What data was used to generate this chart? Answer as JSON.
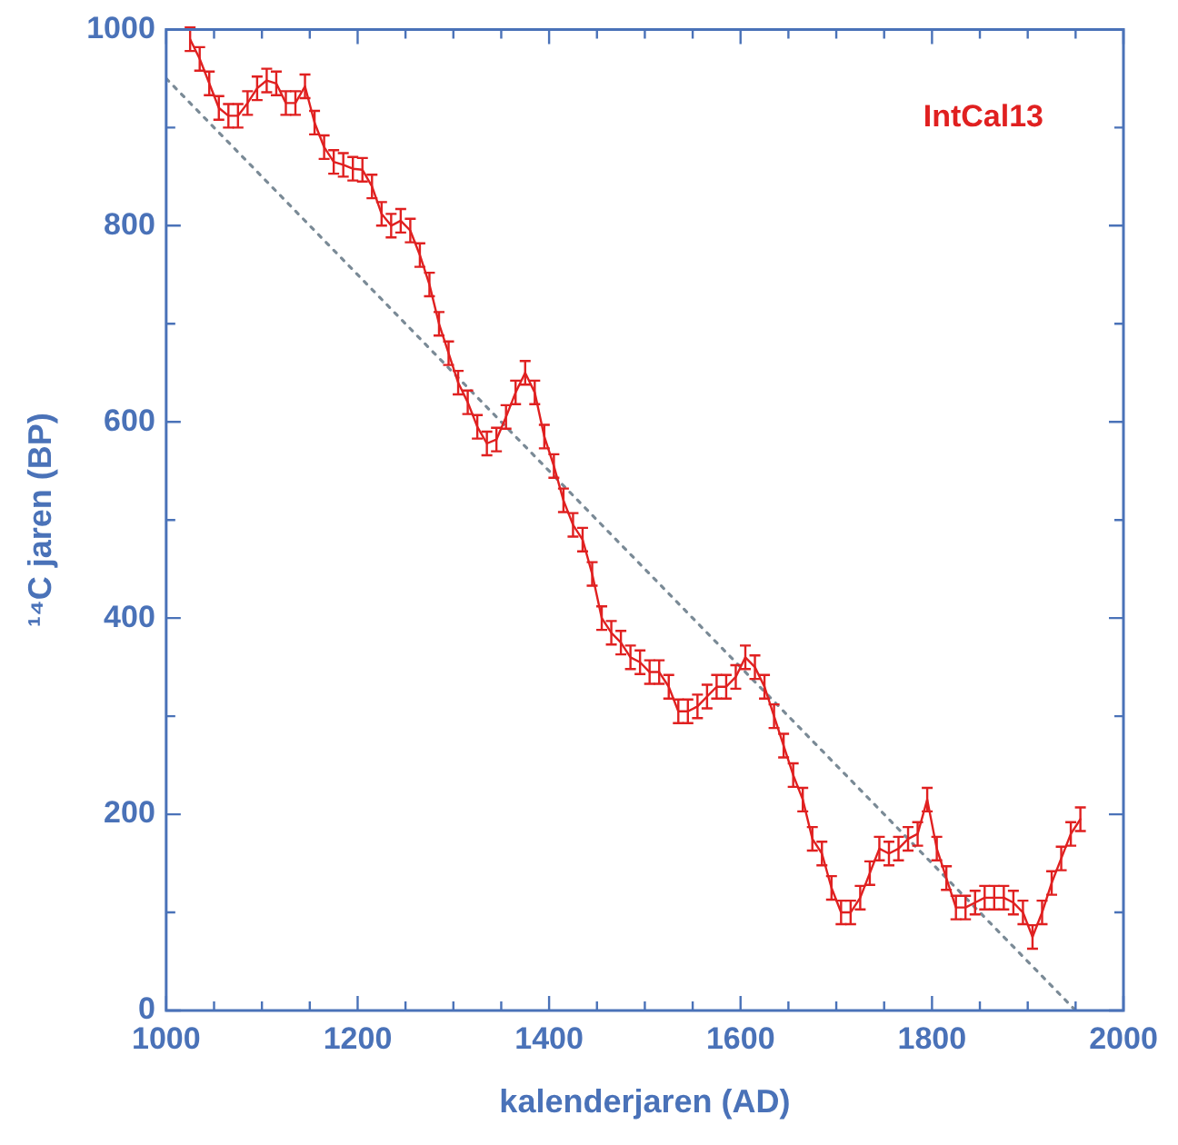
{
  "chart_data": {
    "type": "line",
    "xlabel": "kalenderjaren (AD)",
    "ylabel": "¹⁴C jaren (BP)",
    "xlim": [
      1000,
      2000
    ],
    "ylim": [
      0,
      1000
    ],
    "xticks": [
      1000,
      {
        "value": 1050,
        "label": null
      },
      {
        "value": 1100,
        "label": null
      },
      {
        "value": 1150,
        "label": null
      },
      1200,
      {
        "value": 1250,
        "label": null
      },
      {
        "value": 1300,
        "label": null
      },
      {
        "value": 1350,
        "label": null
      },
      1400,
      {
        "value": 1450,
        "label": null
      },
      {
        "value": 1500,
        "label": null
      },
      {
        "value": 1550,
        "label": null
      },
      1600,
      {
        "value": 1650,
        "label": null
      },
      {
        "value": 1700,
        "label": null
      },
      {
        "value": 1750,
        "label": null
      },
      1800,
      {
        "value": 1850,
        "label": null
      },
      {
        "value": 1900,
        "label": null
      },
      {
        "value": 1950,
        "label": null
      },
      2000
    ],
    "yticks": [
      0,
      {
        "value": 100,
        "label": null
      },
      200,
      {
        "value": 300,
        "label": null
      },
      400,
      {
        "value": 500,
        "label": null
      },
      600,
      {
        "value": 700,
        "label": null
      },
      800,
      {
        "value": 900,
        "label": null
      },
      1000
    ],
    "grid": false,
    "legend": "top right",
    "marker": "none",
    "series": [
      {
        "name": "IntCal13",
        "color": "#e02020",
        "line_style": "solid",
        "x": [
          1025,
          1035,
          1045,
          1055,
          1065,
          1075,
          1085,
          1095,
          1105,
          1115,
          1125,
          1135,
          1145,
          1155,
          1165,
          1175,
          1185,
          1195,
          1205,
          1215,
          1225,
          1235,
          1245,
          1255,
          1265,
          1275,
          1285,
          1295,
          1305,
          1315,
          1325,
          1335,
          1345,
          1355,
          1365,
          1375,
          1385,
          1395,
          1405,
          1415,
          1425,
          1435,
          1445,
          1455,
          1465,
          1475,
          1485,
          1495,
          1505,
          1515,
          1525,
          1535,
          1545,
          1555,
          1565,
          1575,
          1585,
          1595,
          1605,
          1615,
          1625,
          1635,
          1645,
          1655,
          1665,
          1675,
          1685,
          1695,
          1705,
          1715,
          1725,
          1735,
          1745,
          1755,
          1765,
          1775,
          1785,
          1795,
          1805,
          1815,
          1825,
          1835,
          1845,
          1855,
          1865,
          1875,
          1885,
          1895,
          1905,
          1915,
          1925,
          1935,
          1945,
          1955
        ],
        "values": [
          990,
          970,
          945,
          920,
          912,
          912,
          925,
          940,
          948,
          945,
          925,
          925,
          942,
          905,
          880,
          865,
          862,
          858,
          857,
          840,
          812,
          800,
          805,
          795,
          770,
          740,
          700,
          670,
          640,
          620,
          595,
          578,
          582,
          605,
          630,
          650,
          630,
          585,
          555,
          520,
          495,
          480,
          445,
          400,
          385,
          375,
          360,
          355,
          345,
          345,
          330,
          305,
          305,
          310,
          320,
          330,
          330,
          340,
          360,
          350,
          330,
          300,
          270,
          240,
          215,
          175,
          160,
          125,
          100,
          100,
          115,
          140,
          165,
          160,
          165,
          175,
          180,
          215,
          165,
          135,
          105,
          105,
          110,
          115,
          115,
          115,
          110,
          100,
          75,
          100,
          130,
          155,
          180,
          195
        ],
        "errors": [
          12,
          12,
          12,
          12,
          12,
          12,
          12,
          12,
          12,
          12,
          12,
          12,
          12,
          12,
          12,
          12,
          12,
          12,
          12,
          12,
          12,
          12,
          12,
          12,
          12,
          12,
          12,
          12,
          12,
          12,
          12,
          12,
          12,
          12,
          12,
          12,
          12,
          12,
          12,
          12,
          12,
          12,
          12,
          12,
          12,
          12,
          12,
          12,
          12,
          12,
          12,
          12,
          12,
          12,
          12,
          12,
          12,
          12,
          12,
          12,
          12,
          12,
          12,
          12,
          12,
          12,
          12,
          12,
          12,
          12,
          12,
          12,
          12,
          12,
          12,
          12,
          12,
          12,
          12,
          12,
          12,
          12,
          12,
          12,
          12,
          12,
          12,
          12,
          12,
          12,
          12,
          12,
          12,
          12
        ]
      },
      {
        "type": "line",
        "color": "#7a8a96",
        "line_style": "dotted",
        "x": [
          1000,
          1950
        ],
        "values": [
          950,
          0
        ]
      }
    ]
  }
}
